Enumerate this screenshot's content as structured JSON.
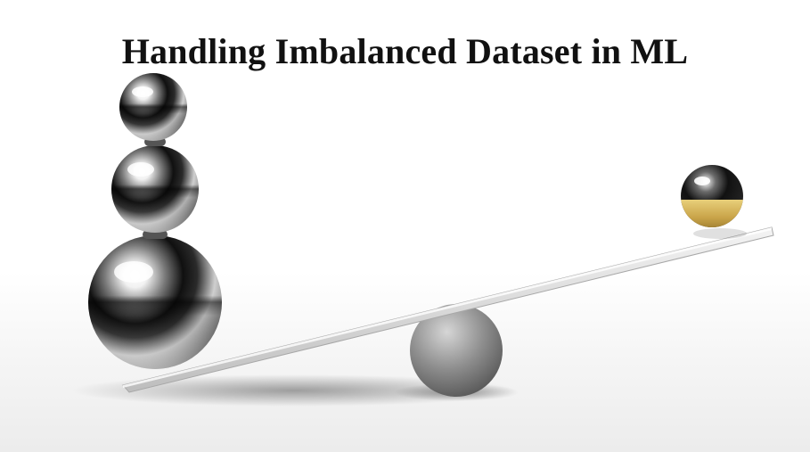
{
  "title": "Handling Imbalanced Dataset in ML",
  "illustration": {
    "subject": "seesaw-balance",
    "colors": {
      "chrome": "#9a9a9a",
      "gold": "#c9a449",
      "plank": "#d9d9d9",
      "fulcrum": "#8a8a8a"
    }
  }
}
